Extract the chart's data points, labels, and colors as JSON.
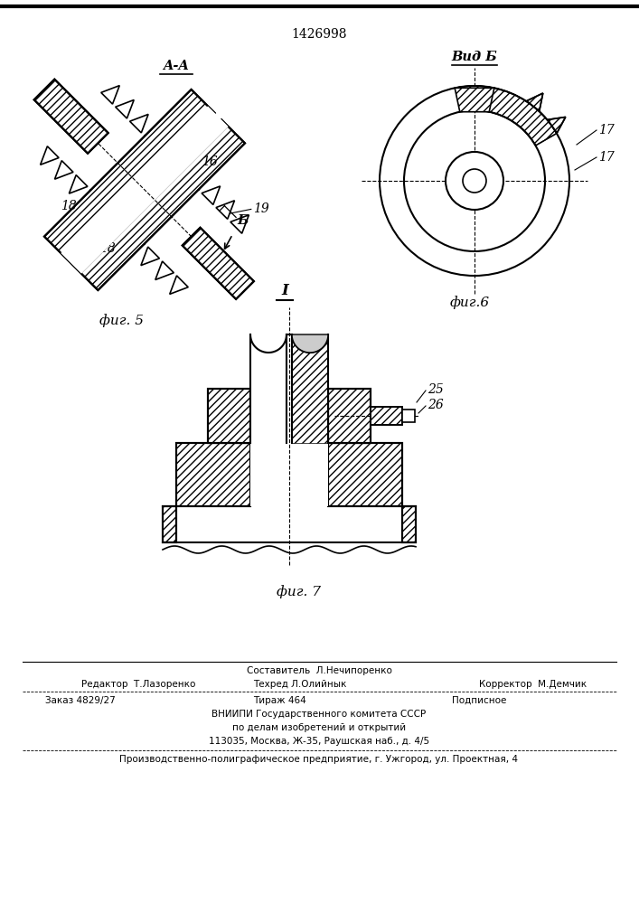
{
  "patent_number": "1426998",
  "fig5_label": "фиг. 5",
  "fig6_label": "фиг.6",
  "fig7_label": "фиг. 7",
  "section_aa": "A-A",
  "view_b": "Вид Б",
  "label_i": "I",
  "bg_color": "#ffffff",
  "line_color": "#000000",
  "footer_col1": "Редактор  Т.Лазоренко",
  "footer_col2_top": "Составитель  Л.Нечипоренко",
  "footer_col2_bot": "Техред Л.Олийнык",
  "footer_col3": "Корректор  М.Демчик",
  "footer_order": "Заказ 4829/27",
  "footer_tirazh": "Тираж 464",
  "footer_podp": "Подписное",
  "footer_vniip": "ВНИИПИ Государственного комитета СССР",
  "footer_podel": "по делам изобретений и открытий",
  "footer_addr": "113035, Москва, Ж-35, Раушская наб., д. 4/5",
  "footer_prod": "Производственно-полиграфическое предприятие, г. Ужгород, ул. Проектная, 4"
}
